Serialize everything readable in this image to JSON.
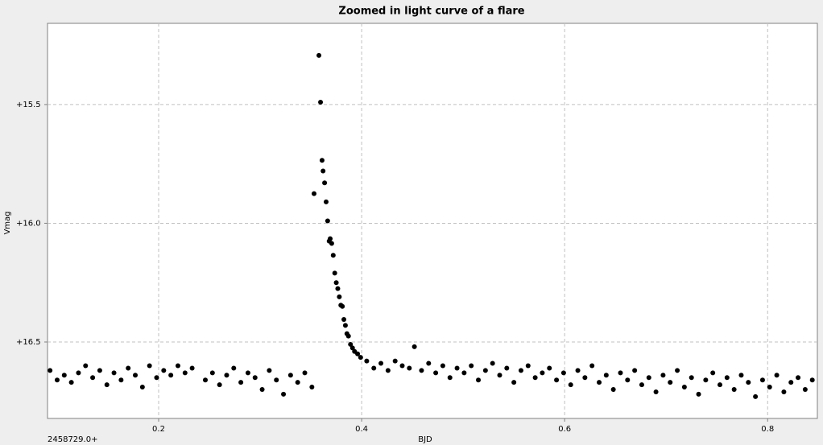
{
  "chart_data": {
    "type": "scatter",
    "title": "Zoomed in light curve of a flare",
    "x_label": "BJD",
    "x_offset_label": "2458729.0+",
    "y_label": "Vmag",
    "xlim": [
      0.0905,
      0.849
    ],
    "ylim": [
      16.822,
      15.158
    ],
    "xticks": [
      0.2,
      0.4,
      0.6,
      0.8
    ],
    "yticks": [
      {
        "value": 15.5,
        "label": "+15.5"
      },
      {
        "value": 16.0,
        "label": "+16.0"
      },
      {
        "value": 16.5,
        "label": "+16.5"
      }
    ],
    "grid": true,
    "color": "#000000",
    "x": [
      0.093,
      0.1,
      0.107,
      0.114,
      0.121,
      0.128,
      0.135,
      0.142,
      0.149,
      0.156,
      0.163,
      0.17,
      0.177,
      0.184,
      0.191,
      0.198,
      0.205,
      0.212,
      0.219,
      0.226,
      0.233,
      0.246,
      0.253,
      0.26,
      0.267,
      0.274,
      0.281,
      0.288,
      0.295,
      0.302,
      0.309,
      0.316,
      0.323,
      0.33,
      0.337,
      0.344,
      0.351,
      0.3531,
      0.3579,
      0.3595,
      0.361,
      0.362,
      0.3635,
      0.365,
      0.3665,
      0.368,
      0.369,
      0.3705,
      0.372,
      0.3735,
      0.375,
      0.3765,
      0.378,
      0.3795,
      0.381,
      0.3825,
      0.384,
      0.3855,
      0.387,
      0.389,
      0.391,
      0.393,
      0.396,
      0.399,
      0.405,
      0.412,
      0.419,
      0.426,
      0.433,
      0.44,
      0.447,
      0.452,
      0.459,
      0.466,
      0.473,
      0.48,
      0.487,
      0.494,
      0.501,
      0.508,
      0.515,
      0.522,
      0.529,
      0.536,
      0.543,
      0.55,
      0.557,
      0.564,
      0.571,
      0.578,
      0.585,
      0.592,
      0.599,
      0.606,
      0.613,
      0.62,
      0.627,
      0.634,
      0.641,
      0.648,
      0.655,
      0.662,
      0.669,
      0.676,
      0.683,
      0.69,
      0.697,
      0.704,
      0.711,
      0.718,
      0.725,
      0.732,
      0.739,
      0.746,
      0.753,
      0.76,
      0.767,
      0.774,
      0.781,
      0.788,
      0.795,
      0.802,
      0.809,
      0.816,
      0.823,
      0.83,
      0.837,
      0.844
    ],
    "values": [
      16.62,
      16.66,
      16.64,
      16.67,
      16.63,
      16.6,
      16.65,
      16.62,
      16.68,
      16.63,
      16.66,
      16.61,
      16.64,
      16.69,
      16.6,
      16.65,
      16.62,
      16.64,
      16.6,
      16.63,
      16.61,
      16.66,
      16.63,
      16.68,
      16.64,
      16.61,
      16.67,
      16.63,
      16.65,
      16.7,
      16.62,
      16.66,
      16.72,
      16.64,
      16.67,
      16.63,
      16.69,
      15.875,
      15.293,
      15.49,
      15.735,
      15.78,
      15.83,
      15.91,
      15.99,
      16.075,
      16.065,
      16.085,
      16.135,
      16.21,
      16.25,
      16.275,
      16.31,
      16.345,
      16.35,
      16.405,
      16.43,
      16.465,
      16.475,
      16.51,
      16.525,
      16.54,
      16.55,
      16.565,
      16.58,
      16.61,
      16.59,
      16.62,
      16.58,
      16.6,
      16.61,
      16.52,
      16.62,
      16.59,
      16.63,
      16.6,
      16.65,
      16.61,
      16.63,
      16.6,
      16.66,
      16.62,
      16.59,
      16.64,
      16.61,
      16.67,
      16.62,
      16.6,
      16.65,
      16.63,
      16.61,
      16.66,
      16.63,
      16.68,
      16.62,
      16.65,
      16.6,
      16.67,
      16.64,
      16.7,
      16.63,
      16.66,
      16.62,
      16.68,
      16.65,
      16.71,
      16.64,
      16.67,
      16.62,
      16.69,
      16.65,
      16.72,
      16.66,
      16.63,
      16.68,
      16.65,
      16.7,
      16.64,
      16.67,
      16.73,
      16.66,
      16.69,
      16.64,
      16.71,
      16.67,
      16.65,
      16.7,
      16.66
    ]
  }
}
